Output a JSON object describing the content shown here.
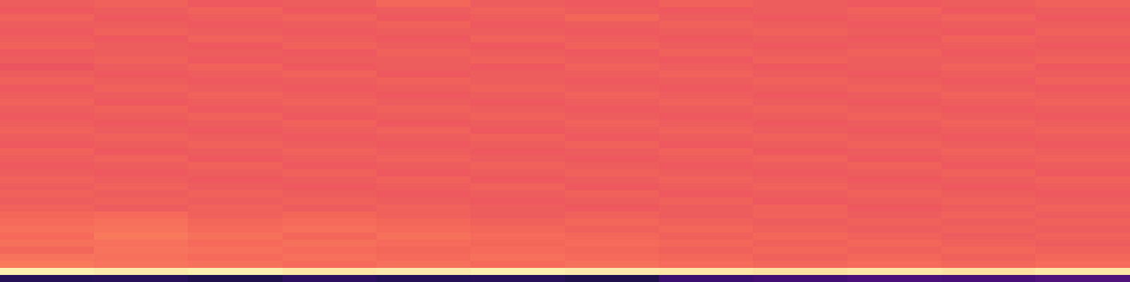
{
  "chart_data": {
    "type": "heatmap",
    "color": "magma",
    "tick_labels": false,
    "color_range": [
      0,
      1
    ],
    "cells": [
      [
        0.66,
        0.67,
        0.65,
        0.66,
        0.68,
        0.66,
        0.65,
        0.67,
        0.66,
        0.65,
        0.66,
        0.67
      ],
      [
        0.65,
        0.66,
        0.67,
        0.65,
        0.66,
        0.67,
        0.66,
        0.65,
        0.66,
        0.67,
        0.65,
        0.66
      ],
      [
        0.67,
        0.65,
        0.66,
        0.67,
        0.65,
        0.66,
        0.68,
        0.66,
        0.65,
        0.66,
        0.67,
        0.65
      ],
      [
        0.66,
        0.66,
        0.65,
        0.66,
        0.67,
        0.65,
        0.66,
        0.67,
        0.66,
        0.65,
        0.66,
        0.66
      ],
      [
        0.65,
        0.67,
        0.66,
        0.65,
        0.66,
        0.66,
        0.65,
        0.66,
        0.67,
        0.66,
        0.65,
        0.67
      ],
      [
        0.66,
        0.65,
        0.67,
        0.66,
        0.65,
        0.67,
        0.66,
        0.65,
        0.66,
        0.65,
        0.67,
        0.66
      ],
      [
        0.67,
        0.66,
        0.65,
        0.67,
        0.66,
        0.65,
        0.67,
        0.66,
        0.65,
        0.66,
        0.66,
        0.65
      ],
      [
        0.65,
        0.66,
        0.66,
        0.65,
        0.67,
        0.66,
        0.65,
        0.67,
        0.66,
        0.67,
        0.65,
        0.66
      ],
      [
        0.66,
        0.67,
        0.65,
        0.66,
        0.66,
        0.67,
        0.66,
        0.65,
        0.67,
        0.66,
        0.66,
        0.67
      ],
      [
        0.64,
        0.66,
        0.67,
        0.65,
        0.66,
        0.65,
        0.67,
        0.66,
        0.65,
        0.66,
        0.67,
        0.65
      ],
      [
        0.66,
        0.65,
        0.66,
        0.67,
        0.65,
        0.66,
        0.66,
        0.67,
        0.66,
        0.65,
        0.66,
        0.66
      ],
      [
        0.67,
        0.66,
        0.65,
        0.66,
        0.67,
        0.66,
        0.65,
        0.66,
        0.67,
        0.66,
        0.65,
        0.67
      ],
      [
        0.65,
        0.67,
        0.66,
        0.65,
        0.66,
        0.67,
        0.66,
        0.65,
        0.66,
        0.67,
        0.66,
        0.65
      ],
      [
        0.66,
        0.66,
        0.67,
        0.66,
        0.65,
        0.66,
        0.67,
        0.66,
        0.65,
        0.66,
        0.67,
        0.66
      ],
      [
        0.67,
        0.65,
        0.66,
        0.67,
        0.66,
        0.65,
        0.66,
        0.67,
        0.66,
        0.65,
        0.66,
        0.67
      ],
      [
        0.66,
        0.67,
        0.65,
        0.66,
        0.67,
        0.66,
        0.65,
        0.66,
        0.67,
        0.66,
        0.65,
        0.66
      ],
      [
        0.65,
        0.66,
        0.67,
        0.65,
        0.66,
        0.67,
        0.66,
        0.65,
        0.66,
        0.67,
        0.66,
        0.65
      ],
      [
        0.66,
        0.65,
        0.66,
        0.67,
        0.65,
        0.66,
        0.67,
        0.66,
        0.65,
        0.66,
        0.67,
        0.66
      ],
      [
        0.67,
        0.66,
        0.65,
        0.66,
        0.67,
        0.65,
        0.66,
        0.67,
        0.66,
        0.65,
        0.66,
        0.67
      ],
      [
        0.66,
        0.67,
        0.66,
        0.65,
        0.66,
        0.67,
        0.65,
        0.66,
        0.67,
        0.66,
        0.65,
        0.66
      ],
      [
        0.65,
        0.66,
        0.67,
        0.66,
        0.65,
        0.66,
        0.67,
        0.65,
        0.66,
        0.67,
        0.66,
        0.65
      ],
      [
        0.67,
        0.65,
        0.66,
        0.67,
        0.66,
        0.65,
        0.66,
        0.67,
        0.65,
        0.66,
        0.67,
        0.66
      ],
      [
        0.66,
        0.67,
        0.65,
        0.66,
        0.67,
        0.66,
        0.65,
        0.66,
        0.67,
        0.65,
        0.66,
        0.67
      ],
      [
        0.65,
        0.66,
        0.67,
        0.65,
        0.66,
        0.67,
        0.66,
        0.65,
        0.66,
        0.67,
        0.65,
        0.66
      ],
      [
        0.66,
        0.65,
        0.66,
        0.67,
        0.65,
        0.66,
        0.67,
        0.66,
        0.65,
        0.66,
        0.67,
        0.65
      ],
      [
        0.67,
        0.66,
        0.65,
        0.66,
        0.67,
        0.65,
        0.66,
        0.67,
        0.66,
        0.65,
        0.66,
        0.67
      ],
      [
        0.66,
        0.67,
        0.66,
        0.65,
        0.66,
        0.67,
        0.65,
        0.66,
        0.67,
        0.66,
        0.65,
        0.66
      ],
      [
        0.67,
        0.66,
        0.67,
        0.66,
        0.65,
        0.66,
        0.67,
        0.65,
        0.66,
        0.67,
        0.66,
        0.65
      ],
      [
        0.66,
        0.67,
        0.66,
        0.67,
        0.66,
        0.65,
        0.66,
        0.67,
        0.65,
        0.66,
        0.67,
        0.66
      ],
      [
        0.67,
        0.66,
        0.67,
        0.66,
        0.67,
        0.66,
        0.65,
        0.66,
        0.67,
        0.65,
        0.66,
        0.67
      ],
      [
        0.68,
        0.69,
        0.67,
        0.68,
        0.67,
        0.66,
        0.67,
        0.66,
        0.67,
        0.66,
        0.67,
        0.66
      ],
      [
        0.69,
        0.7,
        0.68,
        0.69,
        0.68,
        0.67,
        0.68,
        0.67,
        0.66,
        0.67,
        0.66,
        0.67
      ],
      [
        0.7,
        0.71,
        0.69,
        0.7,
        0.69,
        0.68,
        0.67,
        0.68,
        0.67,
        0.66,
        0.67,
        0.66
      ],
      [
        0.69,
        0.72,
        0.7,
        0.68,
        0.7,
        0.69,
        0.68,
        0.67,
        0.68,
        0.67,
        0.66,
        0.67
      ],
      [
        0.7,
        0.7,
        0.69,
        0.7,
        0.69,
        0.68,
        0.69,
        0.68,
        0.67,
        0.68,
        0.67,
        0.66
      ],
      [
        0.68,
        0.71,
        0.7,
        0.69,
        0.68,
        0.69,
        0.68,
        0.67,
        0.68,
        0.67,
        0.68,
        0.67
      ],
      [
        0.71,
        0.7,
        0.69,
        0.7,
        0.69,
        0.7,
        0.69,
        0.68,
        0.67,
        0.68,
        0.67,
        0.68
      ],
      [
        0.72,
        0.71,
        0.7,
        0.69,
        0.7,
        0.69,
        0.7,
        0.69,
        0.68,
        0.69,
        0.68,
        0.69
      ],
      [
        0.97,
        0.96,
        0.97,
        0.95,
        0.96,
        0.97,
        0.96,
        0.95,
        0.94,
        0.95,
        0.94,
        0.95
      ],
      [
        0.15,
        0.16,
        0.14,
        0.17,
        0.15,
        0.16,
        0.14,
        0.2,
        0.22,
        0.24,
        0.23,
        0.25
      ]
    ]
  }
}
